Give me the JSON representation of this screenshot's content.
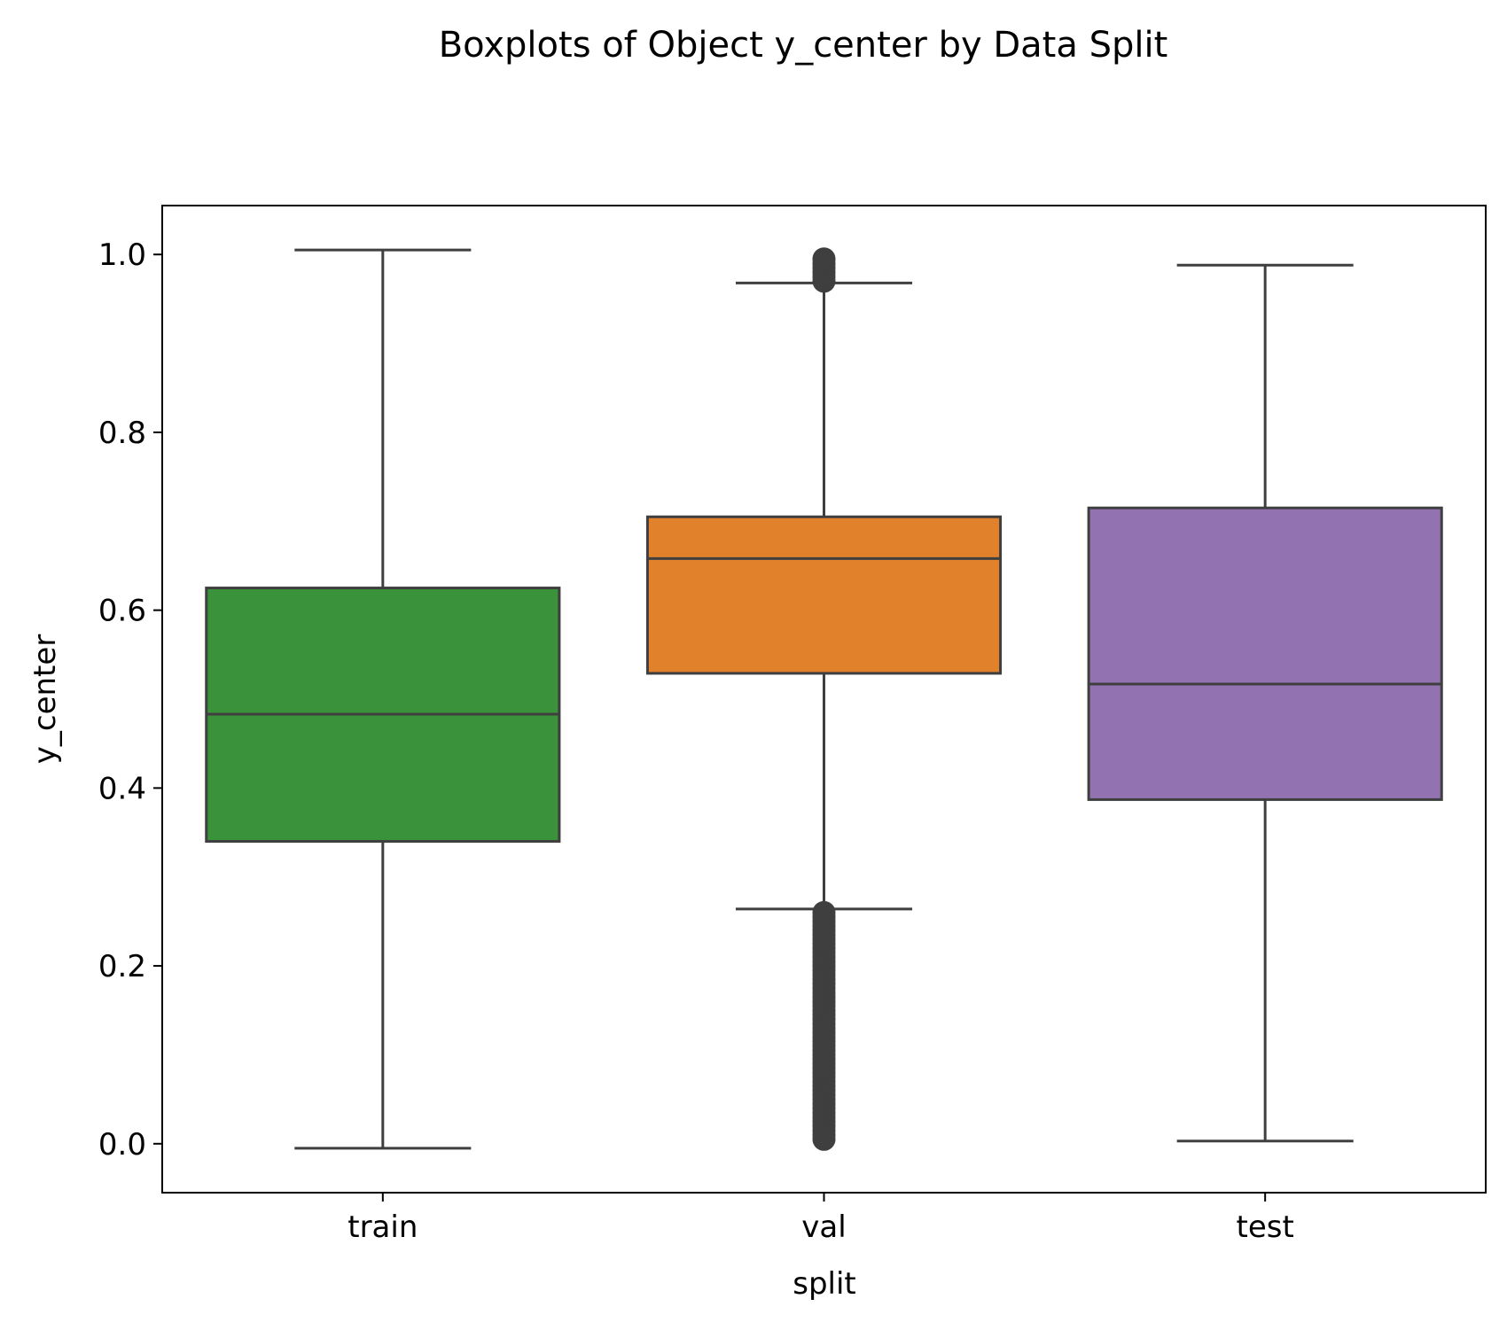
{
  "chart_data": {
    "type": "box",
    "title": "Boxplots of Object y_center by Data Split",
    "xlabel": "split",
    "ylabel": "y_center",
    "ylim": [
      -0.055,
      1.055
    ],
    "yticks": [
      "0.0",
      "0.2",
      "0.4",
      "0.6",
      "0.8",
      "1.0"
    ],
    "ytick_values": [
      0.0,
      0.2,
      0.4,
      0.6,
      0.8,
      1.0
    ],
    "categories": [
      "train",
      "val",
      "test"
    ],
    "boxes": [
      {
        "category": "train",
        "color": "#3a923a",
        "whisker_low": -0.005,
        "q1": 0.34,
        "median": 0.483,
        "q3": 0.625,
        "whisker_high": 1.005,
        "outliers": []
      },
      {
        "category": "val",
        "color": "#e1812c",
        "whisker_low": 0.264,
        "q1": 0.529,
        "median": 0.658,
        "q3": 0.705,
        "whisker_high": 0.968,
        "outliers": [
          0.97,
          0.975,
          0.98,
          0.985,
          0.99,
          0.995,
          0.26,
          0.255,
          0.25,
          0.245,
          0.24,
          0.235,
          0.23,
          0.225,
          0.22,
          0.215,
          0.21,
          0.205,
          0.2,
          0.195,
          0.19,
          0.185,
          0.18,
          0.175,
          0.17,
          0.165,
          0.16,
          0.155,
          0.15,
          0.145,
          0.14,
          0.135,
          0.13,
          0.125,
          0.12,
          0.115,
          0.11,
          0.105,
          0.1,
          0.095,
          0.09,
          0.085,
          0.08,
          0.075,
          0.07,
          0.065,
          0.06,
          0.055,
          0.05,
          0.045,
          0.04,
          0.035,
          0.03,
          0.025,
          0.02,
          0.015,
          0.01,
          0.005
        ]
      },
      {
        "category": "test",
        "color": "#9372b2",
        "whisker_low": 0.003,
        "q1": 0.387,
        "median": 0.517,
        "q3": 0.715,
        "whisker_high": 0.988,
        "outliers": []
      }
    ],
    "line_color": "#3f3f3f",
    "grid": false,
    "legend": "none"
  }
}
